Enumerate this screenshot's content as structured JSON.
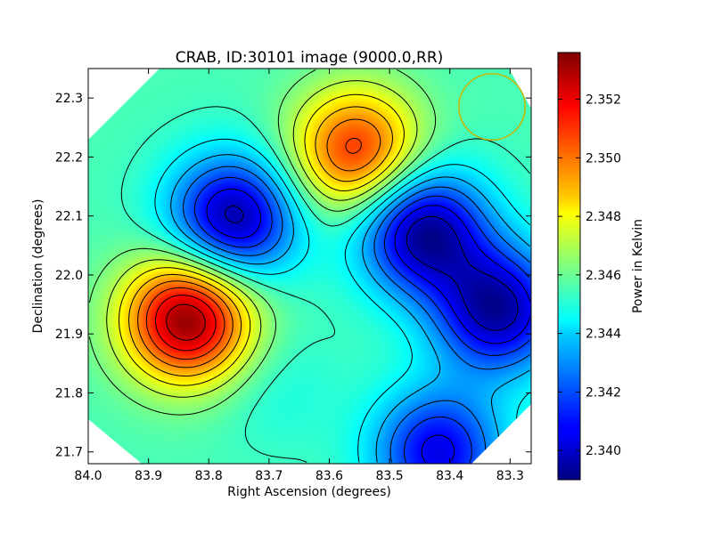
{
  "chart_data": {
    "type": "heatmap",
    "title": "CRAB, ID:30101 image (9000.0,RR)",
    "xlabel": "Right Ascension (degrees)",
    "ylabel": "Declination (degrees)",
    "colorbar_label": "Power in Kelvin",
    "xlim": [
      84.0,
      83.265
    ],
    "ylim": [
      21.68,
      22.35
    ],
    "x_ticks": [
      "84.0",
      "83.9",
      "83.8",
      "83.7",
      "83.6",
      "83.5",
      "83.4",
      "83.3"
    ],
    "y_ticks": [
      "21.7",
      "21.8",
      "21.9",
      "22.0",
      "22.1",
      "22.2",
      "22.3"
    ],
    "colorbar_range": [
      2.339,
      2.3536
    ],
    "colorbar_ticks": [
      "2.340",
      "2.342",
      "2.344",
      "2.346",
      "2.348",
      "2.350",
      "2.352"
    ],
    "colormap": "jet",
    "background_value": 2.3455,
    "features": [
      {
        "ra": 83.835,
        "dec": 21.925,
        "value": 2.3535
      },
      {
        "ra": 83.555,
        "dec": 22.21,
        "value": 2.3512
      },
      {
        "ra": 83.76,
        "dec": 22.095,
        "value": 2.3394
      },
      {
        "ra": 83.445,
        "dec": 22.075,
        "value": 2.3392
      },
      {
        "ra": 83.32,
        "dec": 21.94,
        "value": 2.3395
      },
      {
        "ra": 83.69,
        "dec": 21.81,
        "value": 2.3448
      },
      {
        "ra": 83.42,
        "dec": 21.7,
        "value": 2.3405
      }
    ],
    "beam_circle": {
      "ra": 83.33,
      "dec": 22.285,
      "radius_deg": 0.055,
      "color": "#c8b400"
    }
  }
}
